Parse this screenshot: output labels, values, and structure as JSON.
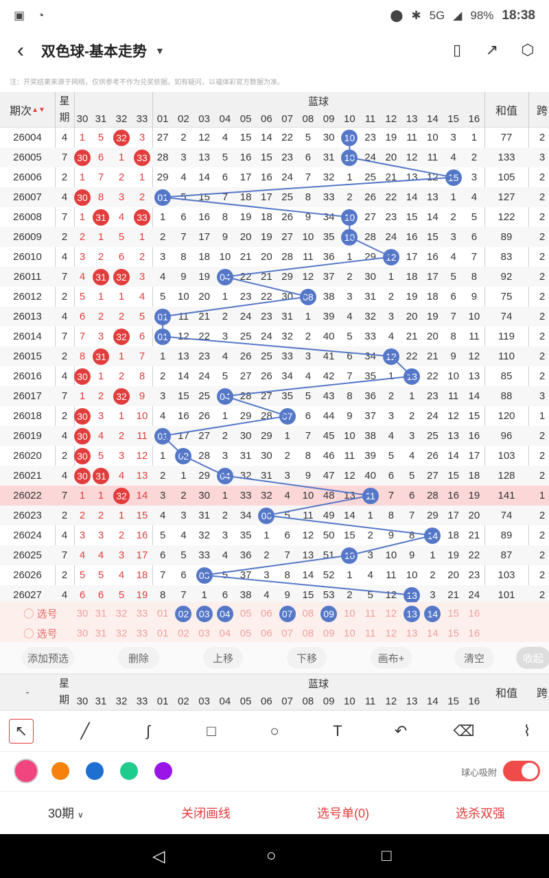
{
  "status": {
    "battery": "98%",
    "time": "18:38",
    "net": "5G"
  },
  "title": "双色球-基本走势",
  "note": "注：开奖结果来源于网络，仅供参考不作为兑奖依据。如有疑问，以福体彩官方数据为准。",
  "header": {
    "period": "期次",
    "week": "星期",
    "blue": "蓝球",
    "sum": "和值",
    "span": "跨"
  },
  "redcols": [
    "30",
    "31",
    "32",
    "33"
  ],
  "bluecols": [
    "01",
    "02",
    "03",
    "04",
    "05",
    "06",
    "07",
    "08",
    "09",
    "10",
    "11",
    "12",
    "13",
    "14",
    "15",
    "16"
  ],
  "rows": [
    {
      "p": "26004",
      "w": "4",
      "r": [
        "1",
        "5",
        "32",
        "3"
      ],
      "rh": [
        2
      ],
      "b": [
        "27",
        "2",
        "12",
        "4",
        "15",
        "14",
        "22",
        "5",
        "30",
        "10",
        "23",
        "19",
        "11",
        "10",
        "3",
        "1"
      ],
      "bh": 9,
      "s": "77",
      "k": "2"
    },
    {
      "p": "26005",
      "w": "7",
      "r": [
        "30",
        "6",
        "1",
        "33"
      ],
      "rh": [
        0,
        3
      ],
      "b": [
        "28",
        "3",
        "13",
        "5",
        "16",
        "15",
        "23",
        "6",
        "31",
        "10",
        "24",
        "20",
        "12",
        "11",
        "4",
        "2"
      ],
      "bh": 9,
      "s": "133",
      "k": "3"
    },
    {
      "p": "26006",
      "w": "2",
      "r": [
        "1",
        "7",
        "2",
        "1"
      ],
      "rh": [],
      "b": [
        "29",
        "4",
        "14",
        "6",
        "17",
        "16",
        "24",
        "7",
        "32",
        "1",
        "25",
        "21",
        "13",
        "12",
        "15",
        "3"
      ],
      "bh": 14,
      "s": "105",
      "k": "2"
    },
    {
      "p": "26007",
      "w": "4",
      "r": [
        "30",
        "8",
        "3",
        "2"
      ],
      "rh": [
        0
      ],
      "b": [
        "01",
        "5",
        "15",
        "7",
        "18",
        "17",
        "25",
        "8",
        "33",
        "2",
        "26",
        "22",
        "14",
        "13",
        "1",
        "4"
      ],
      "bh": 0,
      "s": "127",
      "k": "2"
    },
    {
      "p": "26008",
      "w": "7",
      "r": [
        "1",
        "31",
        "4",
        "33"
      ],
      "rh": [
        1,
        3
      ],
      "b": [
        "1",
        "6",
        "16",
        "8",
        "19",
        "18",
        "26",
        "9",
        "34",
        "10",
        "27",
        "23",
        "15",
        "14",
        "2",
        "5"
      ],
      "bh": 9,
      "s": "122",
      "k": "2"
    },
    {
      "p": "26009",
      "w": "2",
      "r": [
        "2",
        "1",
        "5",
        "1"
      ],
      "rh": [],
      "b": [
        "2",
        "7",
        "17",
        "9",
        "20",
        "19",
        "27",
        "10",
        "35",
        "10",
        "28",
        "24",
        "16",
        "15",
        "3",
        "6"
      ],
      "bh": 9,
      "s": "89",
      "k": "2"
    },
    {
      "p": "26010",
      "w": "4",
      "r": [
        "3",
        "2",
        "6",
        "2"
      ],
      "rh": [],
      "b": [
        "3",
        "8",
        "18",
        "10",
        "21",
        "20",
        "28",
        "11",
        "36",
        "1",
        "29",
        "12",
        "17",
        "16",
        "4",
        "7"
      ],
      "bh": 11,
      "s": "83",
      "k": "2"
    },
    {
      "p": "26011",
      "w": "7",
      "r": [
        "4",
        "31",
        "32",
        "3"
      ],
      "rh": [
        1,
        2
      ],
      "b": [
        "4",
        "9",
        "19",
        "04",
        "22",
        "21",
        "29",
        "12",
        "37",
        "2",
        "30",
        "1",
        "18",
        "17",
        "5",
        "8"
      ],
      "bh": 3,
      "s": "92",
      "k": "2"
    },
    {
      "p": "26012",
      "w": "2",
      "r": [
        "5",
        "1",
        "1",
        "4"
      ],
      "rh": [],
      "b": [
        "5",
        "10",
        "20",
        "1",
        "23",
        "22",
        "30",
        "08",
        "38",
        "3",
        "31",
        "2",
        "19",
        "18",
        "6",
        "9"
      ],
      "bh": 7,
      "s": "75",
      "k": "2"
    },
    {
      "p": "26013",
      "w": "4",
      "r": [
        "6",
        "2",
        "2",
        "5"
      ],
      "rh": [],
      "b": [
        "01",
        "11",
        "21",
        "2",
        "24",
        "23",
        "31",
        "1",
        "39",
        "4",
        "32",
        "3",
        "20",
        "19",
        "7",
        "10"
      ],
      "bh": 0,
      "s": "74",
      "k": "2"
    },
    {
      "p": "26014",
      "w": "7",
      "r": [
        "7",
        "3",
        "32",
        "6"
      ],
      "rh": [
        2
      ],
      "b": [
        "01",
        "12",
        "22",
        "3",
        "25",
        "24",
        "32",
        "2",
        "40",
        "5",
        "33",
        "4",
        "21",
        "20",
        "8",
        "11"
      ],
      "bh": 0,
      "s": "119",
      "k": "2"
    },
    {
      "p": "26015",
      "w": "2",
      "r": [
        "8",
        "31",
        "1",
        "7"
      ],
      "rh": [
        1
      ],
      "b": [
        "1",
        "13",
        "23",
        "4",
        "26",
        "25",
        "33",
        "3",
        "41",
        "6",
        "34",
        "12",
        "22",
        "21",
        "9",
        "12"
      ],
      "bh": 11,
      "s": "110",
      "k": "2"
    },
    {
      "p": "26016",
      "w": "4",
      "r": [
        "30",
        "1",
        "2",
        "8"
      ],
      "rh": [
        0
      ],
      "b": [
        "2",
        "14",
        "24",
        "5",
        "27",
        "26",
        "34",
        "4",
        "42",
        "7",
        "35",
        "1",
        "13",
        "22",
        "10",
        "13"
      ],
      "bh": 12,
      "s": "85",
      "k": "2"
    },
    {
      "p": "26017",
      "w": "7",
      "r": [
        "1",
        "2",
        "32",
        "9"
      ],
      "rh": [
        2
      ],
      "b": [
        "3",
        "15",
        "25",
        "04",
        "28",
        "27",
        "35",
        "5",
        "43",
        "8",
        "36",
        "2",
        "1",
        "23",
        "11",
        "14"
      ],
      "bh": 3,
      "s": "88",
      "k": "3"
    },
    {
      "p": "26018",
      "w": "2",
      "r": [
        "30",
        "3",
        "1",
        "10"
      ],
      "rh": [
        0
      ],
      "b": [
        "4",
        "16",
        "26",
        "1",
        "29",
        "28",
        "07",
        "6",
        "44",
        "9",
        "37",
        "3",
        "2",
        "24",
        "12",
        "15"
      ],
      "bh": 6,
      "s": "120",
      "k": "1"
    },
    {
      "p": "26019",
      "w": "4",
      "r": [
        "30",
        "4",
        "2",
        "11"
      ],
      "rh": [
        0
      ],
      "b": [
        "01",
        "17",
        "27",
        "2",
        "30",
        "29",
        "1",
        "7",
        "45",
        "10",
        "38",
        "4",
        "3",
        "25",
        "13",
        "16"
      ],
      "bh": 0,
      "s": "96",
      "k": "2"
    },
    {
      "p": "26020",
      "w": "2",
      "r": [
        "30",
        "5",
        "3",
        "12"
      ],
      "rh": [
        0
      ],
      "b": [
        "1",
        "02",
        "28",
        "3",
        "31",
        "30",
        "2",
        "8",
        "46",
        "11",
        "39",
        "5",
        "4",
        "26",
        "14",
        "17"
      ],
      "bh": 1,
      "s": "103",
      "k": "2"
    },
    {
      "p": "26021",
      "w": "4",
      "r": [
        "30",
        "31",
        "4",
        "13"
      ],
      "rh": [
        0,
        1
      ],
      "b": [
        "2",
        "1",
        "29",
        "04",
        "32",
        "31",
        "3",
        "9",
        "47",
        "12",
        "40",
        "6",
        "5",
        "27",
        "15",
        "18"
      ],
      "bh": 3,
      "s": "128",
      "k": "2"
    },
    {
      "p": "26022",
      "w": "7",
      "r": [
        "1",
        "1",
        "32",
        "14"
      ],
      "rh": [
        2
      ],
      "b": [
        "3",
        "2",
        "30",
        "1",
        "33",
        "32",
        "4",
        "10",
        "48",
        "13",
        "11",
        "7",
        "6",
        "28",
        "16",
        "19"
      ],
      "bh": 10,
      "s": "141",
      "k": "1"
    },
    {
      "p": "26023",
      "w": "2",
      "r": [
        "2",
        "2",
        "1",
        "15"
      ],
      "rh": [],
      "b": [
        "4",
        "3",
        "31",
        "2",
        "34",
        "06",
        "5",
        "11",
        "49",
        "14",
        "1",
        "8",
        "7",
        "29",
        "17",
        "20"
      ],
      "bh": 5,
      "s": "74",
      "k": "2"
    },
    {
      "p": "26024",
      "w": "4",
      "r": [
        "3",
        "3",
        "2",
        "16"
      ],
      "rh": [],
      "b": [
        "5",
        "4",
        "32",
        "3",
        "35",
        "1",
        "6",
        "12",
        "50",
        "15",
        "2",
        "9",
        "8",
        "14",
        "18",
        "21"
      ],
      "bh": 13,
      "s": "89",
      "k": "2"
    },
    {
      "p": "26025",
      "w": "7",
      "r": [
        "4",
        "4",
        "3",
        "17"
      ],
      "rh": [],
      "b": [
        "6",
        "5",
        "33",
        "4",
        "36",
        "2",
        "7",
        "13",
        "51",
        "10",
        "3",
        "10",
        "9",
        "1",
        "19",
        "22"
      ],
      "bh": 9,
      "s": "87",
      "k": "2"
    },
    {
      "p": "26026",
      "w": "2",
      "r": [
        "5",
        "5",
        "4",
        "18"
      ],
      "rh": [],
      "b": [
        "7",
        "6",
        "03",
        "5",
        "37",
        "3",
        "8",
        "14",
        "52",
        "1",
        "4",
        "11",
        "10",
        "2",
        "20",
        "23"
      ],
      "bh": 2,
      "s": "103",
      "k": "2"
    },
    {
      "p": "26027",
      "w": "4",
      "r": [
        "6",
        "6",
        "5",
        "19"
      ],
      "rh": [],
      "b": [
        "8",
        "7",
        "1",
        "6",
        "38",
        "4",
        "9",
        "15",
        "53",
        "2",
        "5",
        "12",
        "13",
        "3",
        "21",
        "24"
      ],
      "bh": 12,
      "s": "101",
      "k": "2"
    }
  ],
  "select_label": "选号",
  "sel1_blue": [
    1,
    2,
    3,
    6,
    8,
    12,
    13
  ],
  "toolbar": [
    "添加预选",
    "删除",
    "上移",
    "下移",
    "画布+",
    "清空",
    "收起"
  ],
  "magnet_label": "球心吸附",
  "bottom": {
    "periods": "30期",
    "close": "关闭画线",
    "list": "选号单(0)",
    "kill": "选杀双强"
  },
  "colors": {
    "pink": "#f0457e",
    "orange": "#f5820d",
    "blue": "#1d6fd1",
    "green": "#1fcc8e",
    "purple": "#9a16e6",
    "red_ball": "#e23c3c",
    "blue_ball": "#5577c8"
  }
}
